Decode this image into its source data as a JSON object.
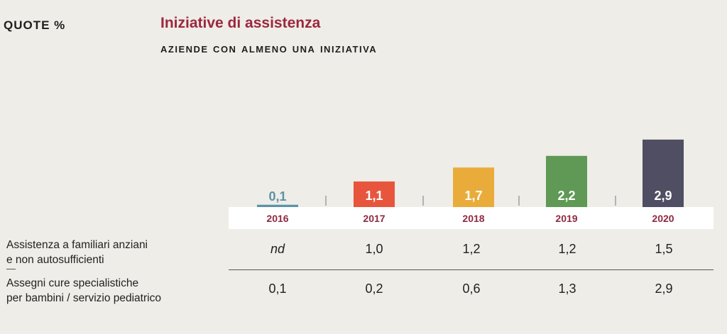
{
  "header": {
    "unit": "QUOTE %",
    "title": "Iniziative di assistenza",
    "subtitle": "Aziende con almeno una iniziativa"
  },
  "chart_data": {
    "type": "bar",
    "categories": [
      "2016",
      "2017",
      "2018",
      "2019",
      "2020"
    ],
    "values": [
      0.1,
      1.1,
      1.7,
      2.2,
      2.9
    ],
    "value_labels": [
      "0,1",
      "1,1",
      "1,7",
      "2,2",
      "2,9"
    ],
    "colors": [
      "#5b93a8",
      "#e8553d",
      "#e9ac3a",
      "#5f9955",
      "#4f4e63"
    ],
    "year_color": "#8f2a40",
    "title": "Iniziative di assistenza",
    "subtitle": "Aziende con almeno una iniziativa",
    "ylabel": "QUOTE %",
    "ylim": [
      0,
      3.2
    ],
    "grid": false,
    "legend": "none"
  },
  "table": {
    "rows": [
      {
        "label_lines": [
          "Assistenza a familiari anziani",
          "e non autosufficienti"
        ],
        "values": [
          "nd",
          "1,0",
          "1,2",
          "1,2",
          "1,5"
        ]
      },
      {
        "label_lines": [
          "Assegni cure specialistiche",
          "per bambini / servizio pediatrico"
        ],
        "values": [
          "0,1",
          "0,2",
          "0,6",
          "1,3",
          "2,9"
        ]
      }
    ]
  }
}
